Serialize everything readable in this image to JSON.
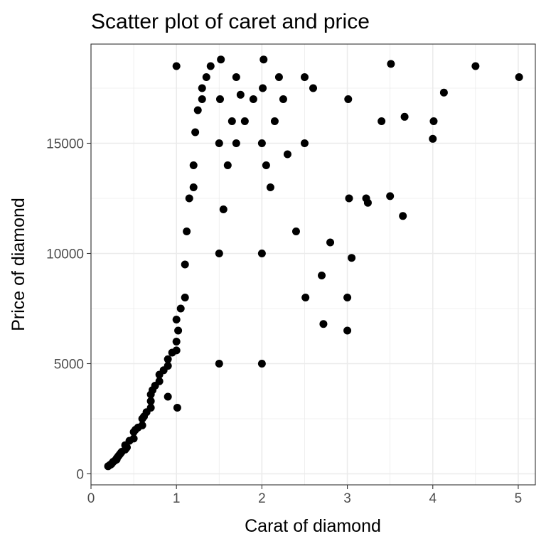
{
  "chart_data": {
    "type": "scatter",
    "title": "Scatter plot of caret and price",
    "xlabel": "Carat of diamond",
    "ylabel": "Price of diamond",
    "xlim": [
      0,
      5.2
    ],
    "ylim": [
      -500,
      19500
    ],
    "x_ticks": [
      0,
      1,
      2,
      3,
      4,
      5
    ],
    "x_tick_labels": [
      "0",
      "1",
      "2",
      "3",
      "4",
      "5"
    ],
    "y_ticks": [
      0,
      5000,
      10000,
      15000
    ],
    "y_tick_labels": [
      "0",
      "5000",
      "10000",
      "15000"
    ],
    "grid": true,
    "legend": "none",
    "point_color": "#000000",
    "background": "#ffffff",
    "grid_color": "#ebebeb",
    "series": [
      {
        "x": [
          0.2,
          0.22,
          0.23,
          0.24,
          0.25,
          0.26,
          0.28,
          0.3,
          0.3,
          0.31,
          0.32,
          0.33,
          0.34,
          0.35,
          0.36,
          0.4,
          0.4,
          0.42,
          0.45,
          0.5,
          0.5,
          0.52,
          0.55,
          0.6,
          0.6,
          0.62,
          0.65,
          0.7,
          0.7,
          0.7,
          0.72,
          0.75,
          0.8,
          0.8,
          0.85,
          0.9,
          0.9,
          0.9,
          0.95,
          1.0,
          1.0,
          1.0,
          1.0,
          1.01,
          1.02,
          1.05,
          1.1,
          1.1,
          1.12,
          1.15,
          1.2,
          1.2,
          1.22,
          1.25,
          1.3,
          1.3,
          1.35,
          1.4,
          1.5,
          1.5,
          1.5,
          1.51,
          1.52,
          1.55,
          1.6,
          1.65,
          1.7,
          1.7,
          1.75,
          1.8,
          1.9,
          2.0,
          2.0,
          2.0,
          2.01,
          2.02,
          2.05,
          2.1,
          2.15,
          2.2,
          2.25,
          2.3,
          2.4,
          2.5,
          2.5,
          2.51,
          2.6,
          2.7,
          2.72,
          2.8,
          3.0,
          3.0,
          3.01,
          3.02,
          3.05,
          3.22,
          3.24,
          3.4,
          3.5,
          3.51,
          3.65,
          3.67,
          4.0,
          4.01,
          4.13,
          4.5,
          5.01
        ],
        "y": [
          345,
          400,
          420,
          450,
          500,
          550,
          600,
          650,
          700,
          750,
          800,
          850,
          900,
          950,
          1000,
          1100,
          1300,
          1200,
          1500,
          1600,
          1900,
          2000,
          2100,
          2200,
          2500,
          2600,
          2800,
          3000,
          3300,
          3600,
          3800,
          4000,
          4200,
          4500,
          4700,
          4900,
          5200,
          3500,
          5500,
          5600,
          6000,
          7000,
          18500,
          3000,
          6500,
          7500,
          8000,
          9500,
          11000,
          12500,
          13000,
          14000,
          15500,
          16500,
          17000,
          17500,
          18000,
          18500,
          5000,
          10000,
          15000,
          17000,
          18800,
          12000,
          14000,
          16000,
          15000,
          18000,
          17200,
          16000,
          17000,
          5000,
          10000,
          15000,
          17500,
          18800,
          14000,
          13000,
          16000,
          18000,
          17000,
          14500,
          11000,
          15000,
          18000,
          8000,
          17500,
          9000,
          6800,
          10500,
          6500,
          8000,
          17000,
          12500,
          9800,
          12500,
          12300,
          16000,
          12600,
          18600,
          11700,
          16200,
          15200,
          16000,
          17300,
          18500,
          18000
        ]
      }
    ]
  }
}
